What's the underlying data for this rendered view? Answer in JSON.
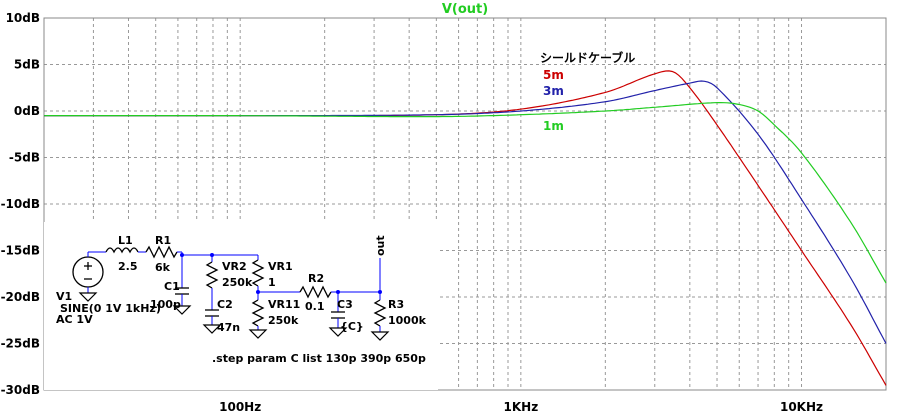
{
  "chart_data": {
    "type": "line",
    "title": "V(out)",
    "title_color": "#22cc22",
    "x_scale": "log",
    "xlim": [
      20,
      20000
    ],
    "ylim": [
      -30,
      10
    ],
    "y_ticks": [
      10,
      5,
      0,
      -5,
      -10,
      -15,
      -20,
      -25,
      -30
    ],
    "y_tick_labels": [
      "10dB",
      "5dB",
      "0dB",
      "-5dB",
      "-10dB",
      "-15dB",
      "-20dB",
      "-25dB",
      "-30dB"
    ],
    "x_ticks": [
      100,
      1000,
      10000
    ],
    "x_tick_labels": [
      "100Hz",
      "1KHz",
      "10KHz"
    ],
    "grid": true,
    "legend_title": "シールドケーブル",
    "series": [
      {
        "name": "5m",
        "color": "#cc0000",
        "x": [
          20,
          100,
          500,
          1000,
          2000,
          3000,
          3500,
          4000,
          5000,
          7000,
          10000,
          15000,
          20000
        ],
        "y": [
          -0.5,
          -0.5,
          -0.4,
          0.2,
          2.0,
          4.0,
          4.2,
          2.5,
          -1.5,
          -8.0,
          -15.0,
          -23.0,
          -29.5
        ]
      },
      {
        "name": "3m",
        "color": "#2222aa",
        "x": [
          20,
          100,
          500,
          1000,
          2000,
          3000,
          4000,
          4500,
          5000,
          7000,
          10000,
          15000,
          20000
        ],
        "y": [
          -0.5,
          -0.5,
          -0.4,
          0.0,
          1.0,
          2.2,
          3.0,
          3.2,
          2.5,
          -2.5,
          -9.5,
          -18.0,
          -25.0
        ]
      },
      {
        "name": "1m",
        "color": "#22cc22",
        "x": [
          20,
          100,
          500,
          1000,
          2000,
          3000,
          5000,
          6000,
          7000,
          8000,
          10000,
          15000,
          20000
        ],
        "y": [
          -0.5,
          -0.5,
          -0.6,
          -0.4,
          0.0,
          0.4,
          0.9,
          0.7,
          0.0,
          -1.5,
          -4.5,
          -12.0,
          -18.5
        ]
      }
    ]
  },
  "schematic": {
    "labels": {
      "l1": "L1",
      "l1_val": "2.5",
      "r1": "R1",
      "r1_val": "6k",
      "v1": "V1",
      "v1_val": "SINE(0 1V 1kHz)",
      "v1_ac": "AC 1V",
      "c1": "C1",
      "c1_val": "100p",
      "vr2": "VR2",
      "vr2_val": "250k",
      "c2": "C2",
      "c2_val": "47n",
      "vr1": "VR1",
      "vr1_val": "1",
      "vr11": "VR11",
      "vr11_val": "250k",
      "r2": "R2",
      "r2_val": "0.1",
      "c3": "C3",
      "c3_val": "{C}",
      "r3": "R3",
      "r3_val": "1000k",
      "out": "out",
      "step": ".step param C list 130p 390p 650p"
    }
  }
}
